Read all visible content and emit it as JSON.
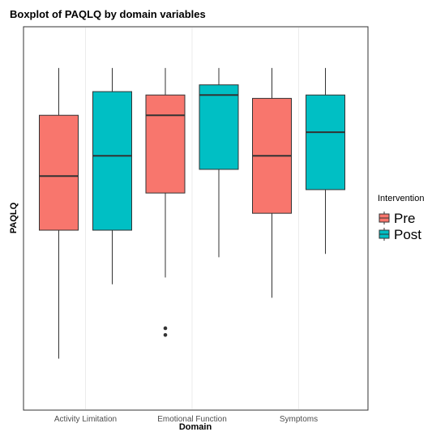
{
  "chart_data": {
    "type": "boxplot",
    "title": "Boxplot of PAQLQ by domain variables",
    "xlabel": "Domain",
    "ylabel": "PAQLQ",
    "categories": [
      "Activity Limitation",
      "Emotional Function",
      "Symptoms"
    ],
    "ylim": [
      0,
      100
    ],
    "y_ticks_shown": false,
    "grid": "vertical-major-only",
    "legend": {
      "title": "Intervention",
      "position": "right"
    },
    "series": [
      {
        "name": "Pre",
        "color": "#F8766D",
        "boxes": [
          {
            "category": "Activity Limitation",
            "whisker_low": 9,
            "q1": 47,
            "median": 63,
            "q3": 81,
            "whisker_high": 95,
            "outliers": []
          },
          {
            "category": "Emotional Function",
            "whisker_low": 33,
            "q1": 58,
            "median": 81,
            "q3": 87,
            "whisker_high": 95,
            "outliers": [
              16,
              18
            ]
          },
          {
            "category": "Symptoms",
            "whisker_low": 27,
            "q1": 52,
            "median": 69,
            "q3": 86,
            "whisker_high": 95,
            "outliers": []
          }
        ]
      },
      {
        "name": "Post",
        "color": "#00BFC4",
        "boxes": [
          {
            "category": "Activity Limitation",
            "whisker_low": 31,
            "q1": 47,
            "median": 69,
            "q3": 88,
            "whisker_high": 95,
            "outliers": []
          },
          {
            "category": "Emotional Function",
            "whisker_low": 39,
            "q1": 65,
            "median": 87,
            "q3": 90,
            "whisker_high": 95,
            "outliers": []
          },
          {
            "category": "Symptoms",
            "whisker_low": 40,
            "q1": 59,
            "median": 76,
            "q3": 87,
            "whisker_high": 95,
            "outliers": []
          }
        ]
      }
    ]
  }
}
